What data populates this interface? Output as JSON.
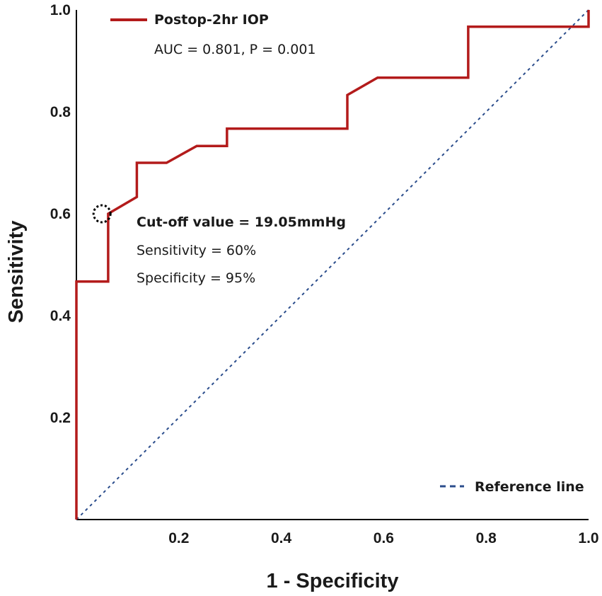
{
  "chart_data": {
    "type": "line",
    "title": "",
    "xlabel": "1 - Specificity",
    "ylabel": "Sensitivity",
    "xlim": [
      0,
      1
    ],
    "ylim": [
      0,
      1
    ],
    "x_ticks": [
      {
        "value": 0.2,
        "label": "0.2"
      },
      {
        "value": 0.4,
        "label": "0.4"
      },
      {
        "value": 0.6,
        "label": "0.6"
      },
      {
        "value": 0.8,
        "label": "0.8"
      },
      {
        "value": 1.0,
        "label": "1.0"
      }
    ],
    "y_ticks": [
      {
        "value": 0.2,
        "label": "0.2"
      },
      {
        "value": 0.4,
        "label": "0.4"
      },
      {
        "value": 0.6,
        "label": "0.6"
      },
      {
        "value": 0.8,
        "label": "0.8"
      },
      {
        "value": 1.0,
        "label": "1.0"
      }
    ],
    "grid": false,
    "series": [
      {
        "name": "Postop-2hr IOP",
        "color": "#b31b1b",
        "style": "solid",
        "points": [
          [
            0.0,
            0.0
          ],
          [
            0.0,
            0.467
          ],
          [
            0.062,
            0.467
          ],
          [
            0.062,
            0.6
          ],
          [
            0.118,
            0.633
          ],
          [
            0.118,
            0.7
          ],
          [
            0.176,
            0.7
          ],
          [
            0.235,
            0.733
          ],
          [
            0.294,
            0.733
          ],
          [
            0.294,
            0.767
          ],
          [
            0.529,
            0.767
          ],
          [
            0.529,
            0.833
          ],
          [
            0.588,
            0.867
          ],
          [
            0.765,
            0.867
          ],
          [
            0.765,
            0.967
          ],
          [
            1.0,
            0.967
          ],
          [
            1.0,
            1.0
          ]
        ]
      },
      {
        "name": "Reference line",
        "color": "#2b4d8c",
        "style": "dashed",
        "points": [
          [
            0.0,
            0.0
          ],
          [
            1.0,
            1.0
          ]
        ]
      }
    ],
    "legend_placement": "top-left",
    "annotations": {
      "auc_text": "AUC = 0.801, P = 0.001",
      "cutoff_title": "Cut-off value = 19.05mmHg",
      "sensitivity_text": "Sensitivity = 60%",
      "specificity_text": "Specificity = 95%",
      "cutoff_point": [
        0.05,
        0.6
      ]
    },
    "reference_legend_placement": "bottom-right"
  }
}
